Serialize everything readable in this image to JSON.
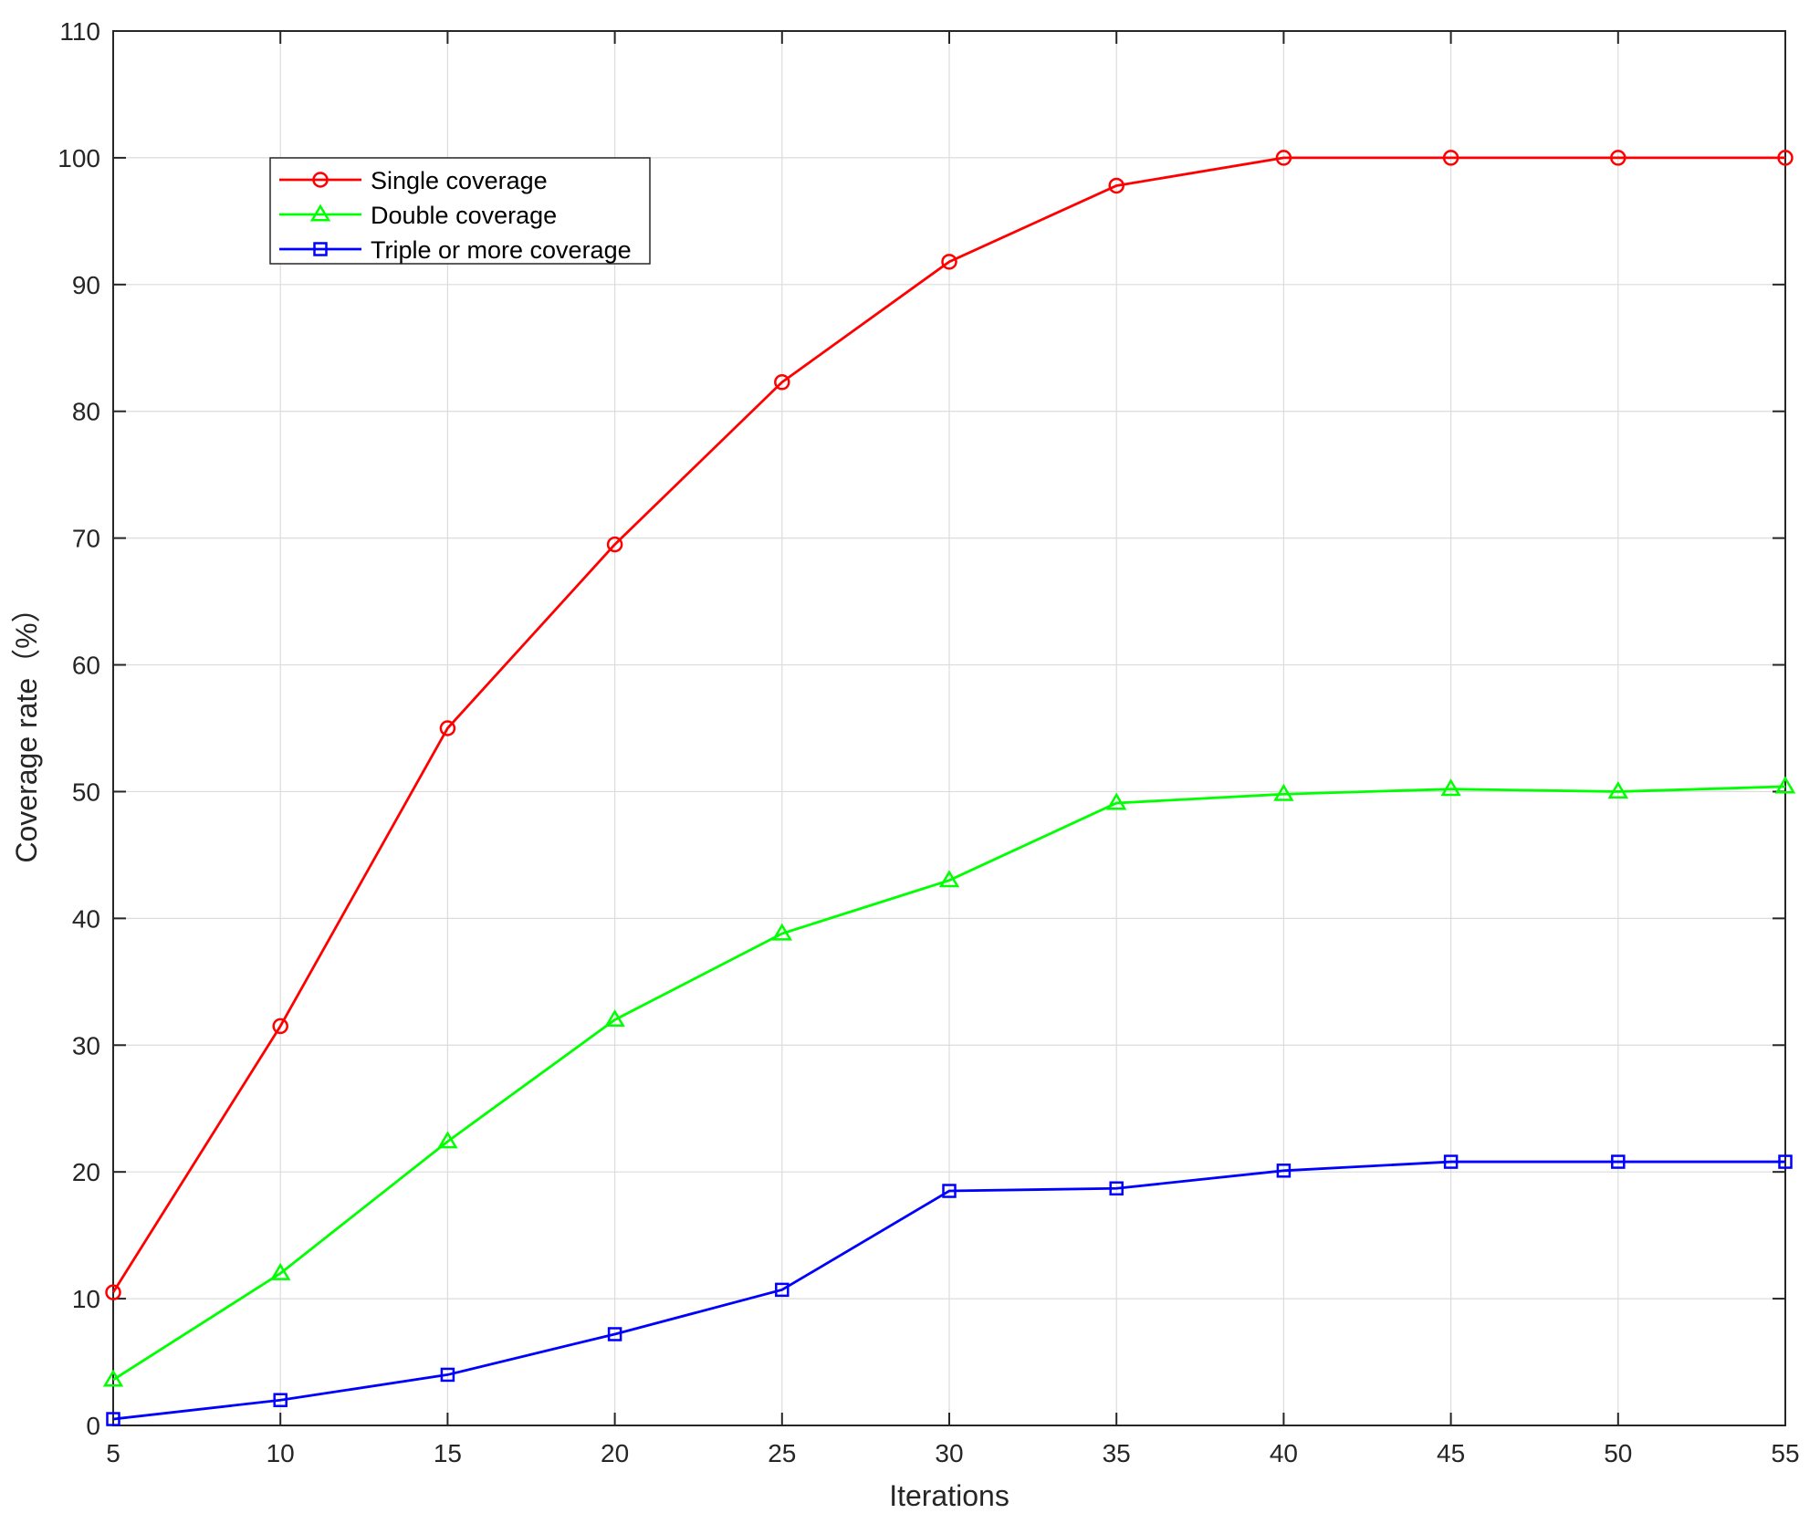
{
  "chart_data": {
    "type": "line",
    "xlabel": "Iterations",
    "ylabel": "Coverage rate（%）",
    "xlim": [
      5,
      55
    ],
    "ylim": [
      0,
      110
    ],
    "x_ticks": [
      5,
      10,
      15,
      20,
      25,
      30,
      35,
      40,
      45,
      50,
      55
    ],
    "y_ticks": [
      0,
      10,
      20,
      30,
      40,
      50,
      60,
      70,
      80,
      90,
      100,
      110
    ],
    "grid": true,
    "legend_position": "top-left",
    "x": [
      5,
      10,
      15,
      20,
      25,
      30,
      35,
      40,
      45,
      50,
      55
    ],
    "series": [
      {
        "name": "Single coverage",
        "color": "#ff0000",
        "marker": "circle",
        "values": [
          10.5,
          31.5,
          55.0,
          69.5,
          82.3,
          91.8,
          97.8,
          100.0,
          100.0,
          100.0,
          100.0
        ]
      },
      {
        "name": "Double coverage",
        "color": "#00ff00",
        "marker": "triangle",
        "values": [
          3.6,
          12.0,
          22.4,
          32.0,
          38.8,
          43.0,
          49.1,
          49.8,
          50.2,
          50.0,
          50.4
        ]
      },
      {
        "name": "Triple or more coverage",
        "color": "#0000ff",
        "marker": "square",
        "values": [
          0.5,
          2.0,
          4.0,
          7.2,
          10.7,
          18.5,
          18.7,
          20.1,
          20.8,
          20.8,
          20.8
        ]
      }
    ]
  }
}
